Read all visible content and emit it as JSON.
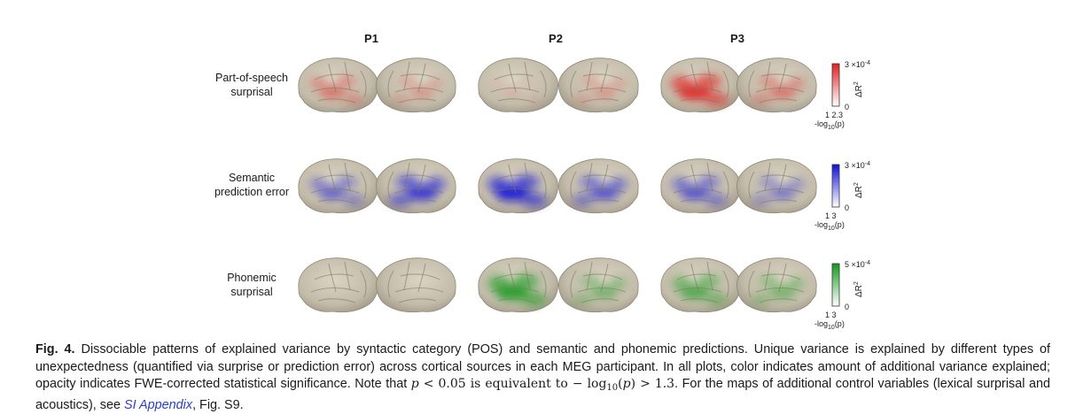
{
  "columns": [
    {
      "label": "P1"
    },
    {
      "label": "P2"
    },
    {
      "label": "P3"
    }
  ],
  "rows": [
    {
      "line1": "Part-of-speech",
      "line2": "surprisal",
      "color": "#e02020",
      "colorbar": {
        "max_prefix": "3",
        "max_suffix": "×10",
        "max_exp": "-4",
        "min": "0",
        "thresholds": "1  2.3",
        "p_label": "-log",
        "p_sub": "10",
        "p_suffix": "(p)",
        "axis_label": "ΔR",
        "axis_exp": "2"
      },
      "intensity": [
        0.55,
        0.35,
        0.15,
        0.35,
        1.0,
        0.55
      ]
    },
    {
      "line1": "Semantic",
      "line2": "prediction error",
      "color": "#1010d8",
      "colorbar": {
        "max_prefix": "3",
        "max_suffix": "×10",
        "max_exp": "-4",
        "min": "0",
        "thresholds": "1  3",
        "p_label": "-log",
        "p_sub": "10",
        "p_suffix": "(p)",
        "axis_label": "ΔR",
        "axis_exp": "2"
      },
      "intensity": [
        0.6,
        0.85,
        1.0,
        0.7,
        0.7,
        0.5
      ]
    },
    {
      "line1": "Phonemic",
      "line2": "surprisal",
      "color": "#129a1e",
      "colorbar": {
        "max_prefix": "5",
        "max_suffix": "×10",
        "max_exp": "-4",
        "min": "0",
        "thresholds": "1  3",
        "p_label": "-log",
        "p_sub": "10",
        "p_suffix": "(p)",
        "axis_label": "ΔR",
        "axis_exp": "2"
      },
      "intensity": [
        0.0,
        0.0,
        1.0,
        0.55,
        0.75,
        0.55
      ]
    }
  ],
  "caption": {
    "label": "Fig. 4.",
    "text1": "Dissociable patterns of explained variance by syntactic category (POS) and semantic and phonemic predictions. Unique variance is explained by different types of unexpectedness (quantified via surprise or prediction error) across cortical sources in each MEG participant. In all plots, color indicates amount of additional variance explained; opacity indicates FWE-corrected statistical significance. Note that ",
    "math_p": "p",
    "math_ineq1": " < 0.05 is equivalent to − log",
    "math_sub": "10",
    "math_paren_open": "(",
    "math_paren_close": ")",
    "math_ineq2": " > 1.3",
    "text2": ". For the maps of additional control variables (lexical surprisal and acoustics), see ",
    "link": "SI Appendix",
    "text3": ", Fig. S9."
  }
}
